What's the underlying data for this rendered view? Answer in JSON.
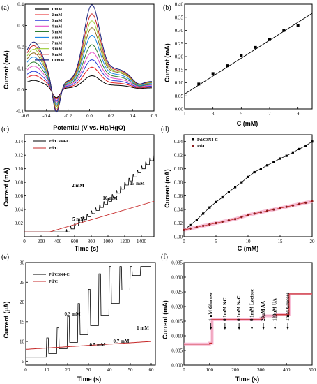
{
  "chart_data": [
    {
      "panel": "(a)",
      "type": "line",
      "xlabel": "Potential (V vs. Hg/HgO)",
      "ylabel": "Current (mA)",
      "xlim": [
        -0.6,
        0.6
      ],
      "ylim": [
        -0.1,
        0.4
      ],
      "xticks": [
        "-0.6",
        "-0.4",
        "-0.2",
        "0.0",
        "0.2",
        "0.4",
        "0.6"
      ],
      "yticks": [
        "-0.1",
        "0.0",
        "0.1",
        "0.2",
        "0.3",
        "0.4"
      ],
      "legend_position": "top-left",
      "series": [
        {
          "name": "1 mM",
          "color": "#000000",
          "peak": 0.055,
          "shoulder": 0.035,
          "trough": -0.02,
          "tail": 0.02
        },
        {
          "name": "2 mM",
          "color": "#e41a1c",
          "peak": 0.09,
          "shoulder": 0.055,
          "trough": -0.025,
          "tail": 0.03
        },
        {
          "name": "3 mM",
          "color": "#2a3cd6",
          "peak": 0.12,
          "shoulder": 0.07,
          "trough": -0.03,
          "tail": 0.04
        },
        {
          "name": "4 mM",
          "color": "#e54fc8",
          "peak": 0.15,
          "shoulder": 0.09,
          "trough": -0.035,
          "tail": 0.05
        },
        {
          "name": "5 mM",
          "color": "#2e7d32",
          "peak": 0.18,
          "shoulder": 0.105,
          "trough": -0.04,
          "tail": 0.06
        },
        {
          "name": "6 mM",
          "color": "#1e88e5",
          "peak": 0.22,
          "shoulder": 0.125,
          "trough": -0.045,
          "tail": 0.07
        },
        {
          "name": "7 mM",
          "color": "#8d6e1f",
          "peak": 0.25,
          "shoulder": 0.14,
          "trough": -0.05,
          "tail": 0.08
        },
        {
          "name": "8 mM",
          "color": "#9acd32",
          "peak": 0.28,
          "shoulder": 0.155,
          "trough": -0.055,
          "tail": 0.085
        },
        {
          "name": "9 mM",
          "color": "#c62828",
          "peak": 0.31,
          "shoulder": 0.17,
          "trough": -0.06,
          "tail": 0.09
        },
        {
          "name": "10 mM",
          "color": "#1a237e",
          "peak": 0.35,
          "shoulder": 0.185,
          "trough": -0.065,
          "tail": 0.095
        }
      ]
    },
    {
      "panel": "(b)",
      "type": "scatter",
      "xlabel": "C (mM)",
      "ylabel": "Current (mA)",
      "xlim": [
        1,
        10
      ],
      "ylim": [
        0.0,
        0.4
      ],
      "xticks": [
        "1",
        "3",
        "5",
        "7",
        "9"
      ],
      "yticks": [
        "0.00",
        "0.05",
        "0.10",
        "0.15",
        "0.20",
        "0.25",
        "0.30",
        "0.35",
        "0.40"
      ],
      "x": [
        2,
        3,
        4,
        5,
        6,
        7,
        8,
        9
      ],
      "y": [
        0.095,
        0.135,
        0.165,
        0.205,
        0.235,
        0.265,
        0.3,
        0.32
      ],
      "fit": {
        "x": [
          1,
          10
        ],
        "y": [
          0.057,
          0.365
        ]
      }
    },
    {
      "panel": "(c)",
      "type": "line",
      "xlabel": "Time (s)",
      "ylabel": "Current (mA)",
      "xlim": [
        0,
        1550
      ],
      "ylim": [
        0.0,
        0.15
      ],
      "xticks": [
        "0",
        "200",
        "400",
        "600",
        "800",
        "1000",
        "1200",
        "1400"
      ],
      "yticks": [
        "0.02",
        "0.04",
        "0.06",
        "0.08",
        "0.10",
        "0.12",
        "0.14"
      ],
      "legend_position": "top-left",
      "series": [
        {
          "name": "Pd/C3N4-C",
          "color": "#000000"
        },
        {
          "name": "Pd/C",
          "color": "#c62828"
        }
      ],
      "annotations": [
        "2 mM",
        "10 mM",
        "15 mM",
        "5 mM"
      ]
    },
    {
      "panel": "(d)",
      "type": "scatter",
      "xlabel": "C (mM)",
      "ylabel": "Current (mA)",
      "xlim": [
        0,
        20
      ],
      "ylim": [
        0.0,
        0.15
      ],
      "xticks": [
        "0",
        "5",
        "10",
        "15",
        "20"
      ],
      "yticks": [
        "0.00",
        "0.02",
        "0.04",
        "0.06",
        "0.08",
        "0.10",
        "0.12",
        "0.14"
      ],
      "legend_position": "top-left",
      "series": [
        {
          "name": "Pd/C3N4-C",
          "color": "#000000",
          "x": [
            0,
            1,
            2,
            3,
            4,
            5,
            6,
            7,
            8,
            9,
            10,
            11,
            12,
            13,
            14,
            15,
            16,
            17,
            18,
            19,
            20
          ],
          "y": [
            0.01,
            0.017,
            0.025,
            0.034,
            0.043,
            0.051,
            0.058,
            0.066,
            0.073,
            0.08,
            0.088,
            0.095,
            0.1,
            0.105,
            0.11,
            0.115,
            0.119,
            0.124,
            0.129,
            0.134,
            0.14
          ]
        },
        {
          "name": "Pd/C",
          "color": "#8b1a1a",
          "x": [
            0,
            1,
            2,
            3,
            4,
            5,
            6,
            7,
            8,
            9,
            10,
            11,
            12,
            13,
            14,
            15,
            16,
            17,
            18,
            19,
            20
          ],
          "y": [
            0.01,
            0.012,
            0.014,
            0.016,
            0.018,
            0.02,
            0.022,
            0.024,
            0.026,
            0.029,
            0.032,
            0.034,
            0.036,
            0.038,
            0.04,
            0.042,
            0.044,
            0.046,
            0.048,
            0.05,
            0.052
          ]
        }
      ]
    },
    {
      "panel": "(e)",
      "type": "line",
      "xlabel": "Time (s)",
      "ylabel": "Current (μA)",
      "xlim": [
        0,
        62
      ],
      "ylim": [
        4,
        30
      ],
      "xticks": [
        "0",
        "10",
        "20",
        "30",
        "40",
        "50",
        "60"
      ],
      "yticks": [
        "5",
        "10",
        "15",
        "20",
        "25",
        "30"
      ],
      "legend_position": "top-left",
      "series": [
        {
          "name": "Pd/C3N4-C",
          "color": "#000000"
        },
        {
          "name": "Pd/C",
          "color": "#c62828"
        }
      ],
      "annotations": [
        "0.3 mM",
        "1 mM",
        "0.5 mM",
        "0.7 mM"
      ]
    },
    {
      "panel": "(f)",
      "type": "line",
      "xlabel": "Time (s)",
      "ylabel": "Current (mA)",
      "xlim": [
        0,
        500
      ],
      "ylim": [
        0.0,
        0.035
      ],
      "xticks": [
        "0",
        "100",
        "200",
        "300",
        "400",
        "500"
      ],
      "yticks": [
        "0.000",
        "0.005",
        "0.010",
        "0.015",
        "0.020",
        "0.025",
        "0.030",
        "0.035"
      ],
      "annotations": [
        "1mM Glucose",
        "0.1mM KCl",
        "0.1mM NaCl",
        "0.1mM Lactose",
        "20μM AA",
        "120μM UA",
        "1mM Glucose"
      ],
      "annotation_x": [
        105,
        160,
        215,
        265,
        310,
        355,
        405
      ],
      "steps": [
        [
          0,
          0.0072
        ],
        [
          100,
          0.0075
        ],
        [
          110,
          0.0155
        ],
        [
          300,
          0.016
        ],
        [
          310,
          0.0168
        ],
        [
          360,
          0.0172
        ],
        [
          410,
          0.0243
        ],
        [
          500,
          0.0243
        ]
      ]
    }
  ]
}
